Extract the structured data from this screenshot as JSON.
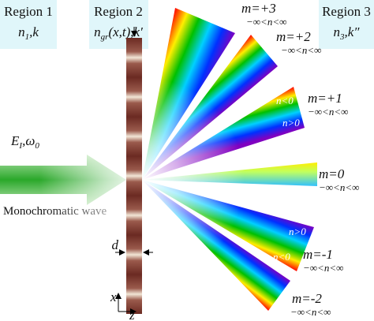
{
  "regions": [
    {
      "title": "Region 1",
      "symbol": "n",
      "subscript": "1",
      "suffix": ",k"
    },
    {
      "title": "Region 2",
      "symbol": "n",
      "subscript": "gr",
      "suffix": "(x,t),k′"
    },
    {
      "title": "Region 3",
      "symbol": "n",
      "subscript": "3",
      "suffix": ",k″"
    }
  ],
  "orders": [
    {
      "label": "m=+3",
      "range": "−∞<n<∞"
    },
    {
      "label": "m=+2",
      "range": "−∞<n<∞"
    },
    {
      "label": "m=+1",
      "range": "−∞<n<∞"
    },
    {
      "label": "m=0",
      "range": "−∞<n<∞"
    },
    {
      "label": "m=-1",
      "range": "−∞<n<∞"
    },
    {
      "label": "m=-2",
      "range": "−∞<n<∞"
    }
  ],
  "inner_labels": [
    "n<0",
    "n>0",
    "n>0",
    "n<0"
  ],
  "incident": {
    "field": "E",
    "field_sub": "I",
    "separator": ",",
    "freq": "ω",
    "freq_sub": "0",
    "caption": "Monochromatic wave"
  },
  "thickness": "d",
  "axes": {
    "x": "x",
    "z": "z"
  }
}
